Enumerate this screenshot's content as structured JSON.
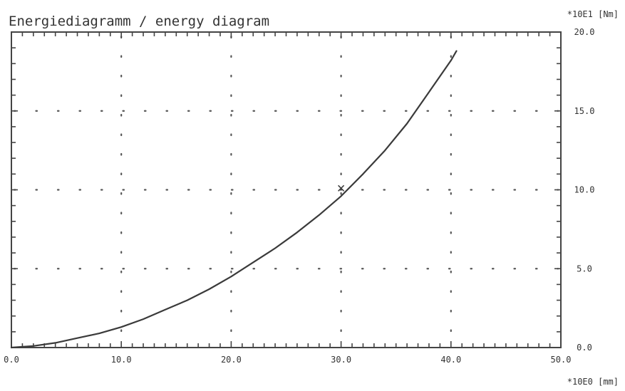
{
  "chart_data": {
    "type": "line",
    "title": "Energiediagramm / energy diagram",
    "xlabel": "",
    "ylabel": "",
    "x_unit_label": "*10E0 [mm]",
    "y_unit_label": "*10E1 [Nm]",
    "xlim": [
      0,
      50
    ],
    "ylim": [
      0,
      20
    ],
    "x_ticks": [
      0,
      10,
      20,
      30,
      40,
      50
    ],
    "x_tick_labels": [
      "0.0",
      "10.0",
      "20.0",
      "30.0",
      "40.0",
      "50.0"
    ],
    "y_ticks": [
      0,
      5,
      10,
      15,
      20
    ],
    "y_tick_labels": [
      "0.0",
      "5.0",
      "10.0",
      "15.0",
      "20.0"
    ],
    "grid": "dotted",
    "marker_annotation": {
      "x": 30,
      "y": 10.1,
      "symbol": "x"
    },
    "series": [
      {
        "x": [
          0,
          2,
          4,
          6,
          8,
          10,
          12,
          14,
          16,
          18,
          20,
          22,
          24,
          26,
          28,
          30,
          32,
          34,
          36,
          38,
          40,
          40.5
        ],
        "values": [
          0.0,
          0.1,
          0.3,
          0.6,
          0.9,
          1.3,
          1.8,
          2.4,
          3.0,
          3.7,
          4.5,
          5.4,
          6.3,
          7.3,
          8.4,
          9.6,
          11.0,
          12.5,
          14.2,
          16.2,
          18.2,
          18.8
        ]
      }
    ]
  }
}
